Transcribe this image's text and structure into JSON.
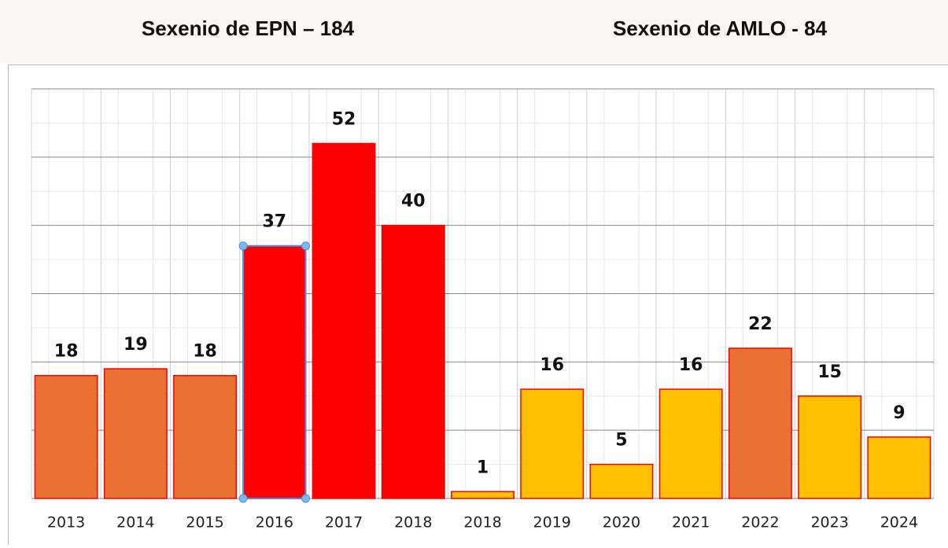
{
  "chart_data": {
    "type": "bar",
    "annotations": [
      "Sexenio de EPN – 184",
      "Sexenio de AMLO - 84"
    ],
    "categories": [
      "2013",
      "2014",
      "2015",
      "2016",
      "2017",
      "2018",
      "2018",
      "2019",
      "2020",
      "2021",
      "2022",
      "2023",
      "2024"
    ],
    "values": [
      18,
      19,
      18,
      37,
      52,
      40,
      1,
      16,
      5,
      16,
      22,
      15,
      9
    ],
    "colors": [
      "#e97132",
      "#e97132",
      "#e97132",
      "#ff0000",
      "#ff0000",
      "#ff0000",
      "#ffc000",
      "#ffc000",
      "#ffc000",
      "#ffc000",
      "#e97132",
      "#ffc000",
      "#ffc000"
    ],
    "ylim": [
      0,
      60
    ],
    "yticks": [
      0,
      10,
      20,
      30,
      40,
      50,
      60
    ],
    "grid": true
  }
}
